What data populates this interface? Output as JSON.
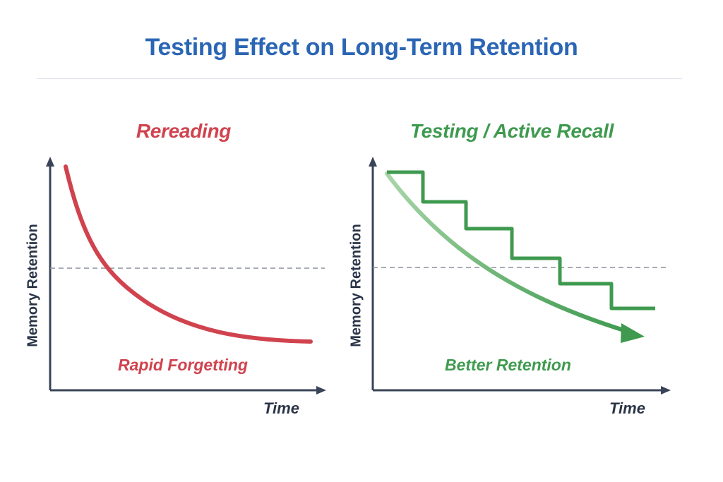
{
  "title": "Testing Effect on Long-Term Retention",
  "colors": {
    "title": "#2b66b5",
    "rereading": "#d0434e",
    "testing": "#3f9a4f",
    "testing_light": "#7fbf84",
    "axis": "#3a4458",
    "threshold": "#8a8f9c"
  },
  "panels": {
    "rereading": {
      "title": "Rereading",
      "y_axis_label": "Memory Retention",
      "x_axis_label": "Time",
      "caption": "Rapid Forgetting"
    },
    "testing": {
      "title": "Testing / Active Recall",
      "y_axis_label": "Memory Retention",
      "x_axis_label": "Time",
      "caption": "Better Retention"
    }
  }
}
